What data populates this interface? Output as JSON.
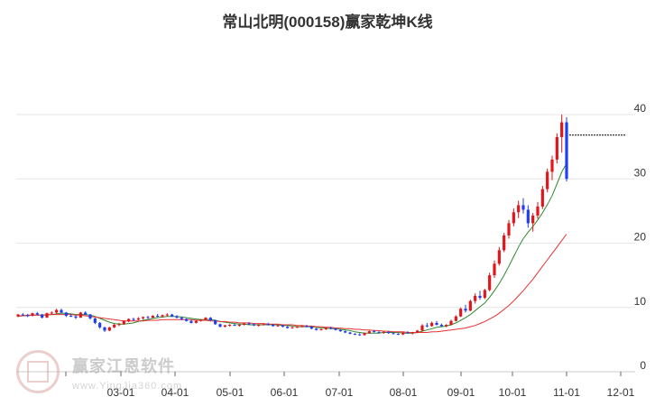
{
  "title": "常山北明(000158)赢家乾坤K线",
  "watermark": {
    "brand": "赢家江恩软件",
    "url": "www.YingJia360.com"
  },
  "chart_data": {
    "type": "candlestick",
    "title": "常山北明(000158)赢家乾坤K线",
    "x_ticks": [
      "03-01",
      "04-01",
      "05-01",
      "06-01",
      "07-01",
      "08-01",
      "09-01",
      "10-01",
      "11-01",
      "12-01"
    ],
    "y_ticks": [
      0,
      10,
      20,
      30,
      40
    ],
    "ylim": [
      0,
      40
    ],
    "grid": true,
    "up_color": "#e0161b",
    "down_color": "#1f3ef0",
    "price_line": {
      "value": 36.8,
      "color": "#000000"
    },
    "candles": [
      [
        8.6,
        9.0,
        8.5,
        8.9
      ],
      [
        8.9,
        9.1,
        8.7,
        8.8
      ],
      [
        8.8,
        9.0,
        8.5,
        8.7
      ],
      [
        8.7,
        9.2,
        8.6,
        9.1
      ],
      [
        9.1,
        9.3,
        8.8,
        8.9
      ],
      [
        8.9,
        9.0,
        8.3,
        8.4
      ],
      [
        8.4,
        9.2,
        8.4,
        9.1
      ],
      [
        9.1,
        9.4,
        8.9,
        9.2
      ],
      [
        9.2,
        9.8,
        9.0,
        9.6
      ],
      [
        9.6,
        9.8,
        9.1,
        9.2
      ],
      [
        9.2,
        9.3,
        8.5,
        8.7
      ],
      [
        8.7,
        9.0,
        8.5,
        8.6
      ],
      [
        8.6,
        8.8,
        8.2,
        8.4
      ],
      [
        8.4,
        9.3,
        8.4,
        9.2
      ],
      [
        9.2,
        9.4,
        8.8,
        8.9
      ],
      [
        8.9,
        9.0,
        8.1,
        8.3
      ],
      [
        8.3,
        8.4,
        7.4,
        7.6
      ],
      [
        7.6,
        7.7,
        6.7,
        6.9
      ],
      [
        6.9,
        7.0,
        6.2,
        6.4
      ],
      [
        6.4,
        7.0,
        6.3,
        6.9
      ],
      [
        6.9,
        7.5,
        6.8,
        7.3
      ],
      [
        7.3,
        7.6,
        7.1,
        7.4
      ],
      [
        7.4,
        8.0,
        7.3,
        7.9
      ],
      [
        7.9,
        8.3,
        7.7,
        8.2
      ],
      [
        8.2,
        8.4,
        7.9,
        8.1
      ],
      [
        8.1,
        8.5,
        8.0,
        8.3
      ],
      [
        8.3,
        8.6,
        8.1,
        8.5
      ],
      [
        8.5,
        8.7,
        8.2,
        8.4
      ],
      [
        8.4,
        8.8,
        8.3,
        8.7
      ],
      [
        8.7,
        9.0,
        8.5,
        8.6
      ],
      [
        8.6,
        8.9,
        8.4,
        8.8
      ],
      [
        8.8,
        9.1,
        8.6,
        8.9
      ],
      [
        8.9,
        9.0,
        8.5,
        8.6
      ],
      [
        8.6,
        8.8,
        8.3,
        8.4
      ],
      [
        8.4,
        8.6,
        8.0,
        8.2
      ],
      [
        8.2,
        8.3,
        7.8,
        7.9
      ],
      [
        7.9,
        8.1,
        7.5,
        7.6
      ],
      [
        7.6,
        8.0,
        7.5,
        7.9
      ],
      [
        7.9,
        8.2,
        7.8,
        8.1
      ],
      [
        8.1,
        8.5,
        8.0,
        8.4
      ],
      [
        8.4,
        8.5,
        7.9,
        8.0
      ],
      [
        8.0,
        8.1,
        7.3,
        7.4
      ],
      [
        7.4,
        7.5,
        6.9,
        7.0
      ],
      [
        7.0,
        7.3,
        6.9,
        7.2
      ],
      [
        7.2,
        7.4,
        7.0,
        7.3
      ],
      [
        7.3,
        7.5,
        7.1,
        7.2
      ],
      [
        7.2,
        7.4,
        7.0,
        7.3
      ],
      [
        7.3,
        7.6,
        7.2,
        7.5
      ],
      [
        7.5,
        7.7,
        7.3,
        7.4
      ],
      [
        7.4,
        7.5,
        7.1,
        7.2
      ],
      [
        7.2,
        7.4,
        7.0,
        7.3
      ],
      [
        7.3,
        7.5,
        7.2,
        7.4
      ],
      [
        7.4,
        7.6,
        7.2,
        7.3
      ],
      [
        7.3,
        7.4,
        7.0,
        7.1
      ],
      [
        7.1,
        7.3,
        7.0,
        7.2
      ],
      [
        7.2,
        7.3,
        6.9,
        7.0
      ],
      [
        7.0,
        7.1,
        6.7,
        6.8
      ],
      [
        6.8,
        7.0,
        6.7,
        6.9
      ],
      [
        6.9,
        7.1,
        6.8,
        7.0
      ],
      [
        7.0,
        7.2,
        6.9,
        7.1
      ],
      [
        7.1,
        7.3,
        6.9,
        7.0
      ],
      [
        7.0,
        7.1,
        6.6,
        6.7
      ],
      [
        6.7,
        6.8,
        6.4,
        6.5
      ],
      [
        6.5,
        6.7,
        6.4,
        6.6
      ],
      [
        6.6,
        6.9,
        6.5,
        6.8
      ],
      [
        6.8,
        7.0,
        6.6,
        6.7
      ],
      [
        6.7,
        6.8,
        6.4,
        6.5
      ],
      [
        6.5,
        6.6,
        6.2,
        6.3
      ],
      [
        6.3,
        6.4,
        6.0,
        6.1
      ],
      [
        6.1,
        6.2,
        5.8,
        5.9
      ],
      [
        5.9,
        6.0,
        5.7,
        5.8
      ],
      [
        5.8,
        6.0,
        5.6,
        5.7
      ],
      [
        5.7,
        6.1,
        5.6,
        6.0
      ],
      [
        6.0,
        6.4,
        5.9,
        6.3
      ],
      [
        6.3,
        6.5,
        6.1,
        6.2
      ],
      [
        6.2,
        6.3,
        6.0,
        6.1
      ],
      [
        6.1,
        6.3,
        5.9,
        6.2
      ],
      [
        6.2,
        6.3,
        5.9,
        6.0
      ],
      [
        6.0,
        6.1,
        5.8,
        5.9
      ],
      [
        5.9,
        6.0,
        5.7,
        5.8
      ],
      [
        5.8,
        6.2,
        5.7,
        6.1
      ],
      [
        6.1,
        6.3,
        5.9,
        6.0
      ],
      [
        6.0,
        6.2,
        5.8,
        6.1
      ],
      [
        6.1,
        6.5,
        6.0,
        6.4
      ],
      [
        6.4,
        7.4,
        6.3,
        7.2
      ],
      [
        7.2,
        7.6,
        6.9,
        7.1
      ],
      [
        7.1,
        7.8,
        7.0,
        7.6
      ],
      [
        7.6,
        7.9,
        7.2,
        7.3
      ],
      [
        7.3,
        7.5,
        7.0,
        7.1
      ],
      [
        7.1,
        7.4,
        6.9,
        7.3
      ],
      [
        7.3,
        8.1,
        7.2,
        7.9
      ],
      [
        7.9,
        8.8,
        7.8,
        8.6
      ],
      [
        8.6,
        10.0,
        8.5,
        9.8
      ],
      [
        9.8,
        10.4,
        9.2,
        9.5
      ],
      [
        9.5,
        11.2,
        9.4,
        11.0
      ],
      [
        11.0,
        12.2,
        10.6,
        11.8
      ],
      [
        11.8,
        12.6,
        11.2,
        11.5
      ],
      [
        11.5,
        12.9,
        11.3,
        12.7
      ],
      [
        12.7,
        15.4,
        12.5,
        15.0
      ],
      [
        15.0,
        17.3,
        14.6,
        16.8
      ],
      [
        16.8,
        19.4,
        16.5,
        18.9
      ],
      [
        18.9,
        21.6,
        18.6,
        21.2
      ],
      [
        21.2,
        23.6,
        20.7,
        23.1
      ],
      [
        23.1,
        25.4,
        22.6,
        24.8
      ],
      [
        24.8,
        26.6,
        23.9,
        25.9
      ],
      [
        25.9,
        27.0,
        24.6,
        25.2
      ],
      [
        25.2,
        25.9,
        22.4,
        23.1
      ],
      [
        23.1,
        24.7,
        21.8,
        24.3
      ],
      [
        24.3,
        26.4,
        23.8,
        25.7
      ],
      [
        25.7,
        28.9,
        25.3,
        28.4
      ],
      [
        28.4,
        31.6,
        27.9,
        31.1
      ],
      [
        31.1,
        33.6,
        29.8,
        33.0
      ],
      [
        33.0,
        37.1,
        32.4,
        36.5
      ],
      [
        36.5,
        40.0,
        34.1,
        38.8
      ],
      [
        38.8,
        39.6,
        29.6,
        30.0
      ]
    ],
    "series": [
      {
        "color": "#2e8b2e",
        "values": [
          8.6,
          8.7,
          8.7,
          8.8,
          8.8,
          8.8,
          8.8,
          8.9,
          9.0,
          9.1,
          9.1,
          9.0,
          8.9,
          8.9,
          8.9,
          8.8,
          8.6,
          8.3,
          8.0,
          7.7,
          7.5,
          7.4,
          7.4,
          7.5,
          7.6,
          7.8,
          8.0,
          8.1,
          8.3,
          8.4,
          8.5,
          8.6,
          8.6,
          8.6,
          8.5,
          8.4,
          8.3,
          8.2,
          8.1,
          8.1,
          8.1,
          8.0,
          7.8,
          7.7,
          7.6,
          7.5,
          7.4,
          7.4,
          7.3,
          7.3,
          7.3,
          7.3,
          7.3,
          7.3,
          7.3,
          7.2,
          7.2,
          7.1,
          7.0,
          7.0,
          7.0,
          7.0,
          6.9,
          6.8,
          6.8,
          6.7,
          6.7,
          6.6,
          6.5,
          6.4,
          6.2,
          6.1,
          6.0,
          6.0,
          6.0,
          6.0,
          6.1,
          6.1,
          6.1,
          6.1,
          6.0,
          6.0,
          6.0,
          6.1,
          6.3,
          6.5,
          6.7,
          6.9,
          7.0,
          7.1,
          7.3,
          7.6,
          8.0,
          8.4,
          8.9,
          9.5,
          10.1,
          10.7,
          11.6,
          12.6,
          13.7,
          15.0,
          16.4,
          17.9,
          19.4,
          20.7,
          21.7,
          22.6,
          23.6,
          24.7,
          26.0,
          27.4,
          29.2,
          31.1,
          32.4
        ]
      },
      {
        "color": "#e63232",
        "values": [
          8.7,
          8.7,
          8.8,
          8.8,
          8.8,
          8.8,
          8.9,
          8.9,
          8.9,
          8.9,
          8.9,
          8.9,
          8.8,
          8.8,
          8.7,
          8.6,
          8.5,
          8.4,
          8.3,
          8.2,
          8.1,
          8.0,
          7.9,
          7.9,
          7.9,
          7.9,
          7.9,
          8.0,
          8.0,
          8.0,
          8.1,
          8.1,
          8.1,
          8.1,
          8.1,
          8.1,
          8.1,
          8.0,
          8.0,
          8.0,
          7.9,
          7.9,
          7.8,
          7.8,
          7.7,
          7.7,
          7.6,
          7.6,
          7.6,
          7.5,
          7.5,
          7.5,
          7.4,
          7.4,
          7.4,
          7.3,
          7.3,
          7.3,
          7.2,
          7.2,
          7.1,
          7.1,
          7.0,
          7.0,
          6.9,
          6.9,
          6.8,
          6.8,
          6.7,
          6.7,
          6.6,
          6.6,
          6.5,
          6.5,
          6.4,
          6.4,
          6.3,
          6.3,
          6.2,
          6.2,
          6.2,
          6.1,
          6.1,
          6.1,
          6.1,
          6.1,
          6.2,
          6.2,
          6.3,
          6.4,
          6.5,
          6.6,
          6.7,
          6.8,
          7.0,
          7.2,
          7.5,
          7.8,
          8.2,
          8.6,
          9.1,
          9.7,
          10.3,
          11.0,
          11.8,
          12.6,
          13.5,
          14.4,
          15.4,
          16.4,
          17.4,
          18.4,
          19.4,
          20.4,
          21.4
        ]
      }
    ]
  }
}
